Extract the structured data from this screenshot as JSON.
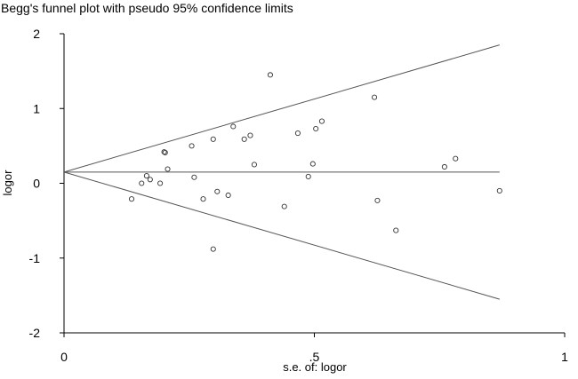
{
  "chart_data": {
    "type": "scatter",
    "title": "Begg's funnel plot with pseudo 95% confidence limits",
    "xlabel": "s.e. of: logor",
    "ylabel": "logor",
    "xlim": [
      0,
      1
    ],
    "ylim": [
      -2,
      2
    ],
    "x_ticks": [
      {
        "value": 0,
        "label": "0"
      },
      {
        "value": 0.5,
        "label": ".5"
      },
      {
        "value": 1,
        "label": "1"
      }
    ],
    "y_ticks": [
      {
        "value": 2,
        "label": "2"
      },
      {
        "value": 1,
        "label": "1"
      },
      {
        "value": 0,
        "label": "0"
      },
      {
        "value": -1,
        "label": "-1"
      },
      {
        "value": -2,
        "label": "-2"
      }
    ],
    "pooled_estimate": 0.15,
    "reference_lines": [
      {
        "name": "pooled-line",
        "x": [
          0,
          0.87
        ],
        "y": [
          0.15,
          0.15
        ]
      },
      {
        "name": "upper-limit-line",
        "x": [
          0,
          0.87
        ],
        "y": [
          0.15,
          1.85
        ]
      },
      {
        "name": "lower-limit-line",
        "x": [
          0,
          0.87
        ],
        "y": [
          0.15,
          -1.55
        ]
      }
    ],
    "points": [
      {
        "x": 0.135,
        "y": -0.21
      },
      {
        "x": 0.155,
        "y": 0.0
      },
      {
        "x": 0.165,
        "y": 0.1
      },
      {
        "x": 0.172,
        "y": 0.05
      },
      {
        "x": 0.192,
        "y": 0.0
      },
      {
        "x": 0.2,
        "y": 0.42
      },
      {
        "x": 0.202,
        "y": 0.41
      },
      {
        "x": 0.207,
        "y": 0.19
      },
      {
        "x": 0.255,
        "y": 0.5
      },
      {
        "x": 0.26,
        "y": 0.08
      },
      {
        "x": 0.278,
        "y": -0.21
      },
      {
        "x": 0.298,
        "y": 0.59
      },
      {
        "x": 0.298,
        "y": -0.88
      },
      {
        "x": 0.306,
        "y": -0.11
      },
      {
        "x": 0.328,
        "y": -0.16
      },
      {
        "x": 0.338,
        "y": 0.76
      },
      {
        "x": 0.36,
        "y": 0.59
      },
      {
        "x": 0.372,
        "y": 0.64
      },
      {
        "x": 0.38,
        "y": 0.25
      },
      {
        "x": 0.412,
        "y": 1.45
      },
      {
        "x": 0.44,
        "y": -0.31
      },
      {
        "x": 0.467,
        "y": 0.67
      },
      {
        "x": 0.488,
        "y": 0.09
      },
      {
        "x": 0.497,
        "y": 0.26
      },
      {
        "x": 0.503,
        "y": 0.73
      },
      {
        "x": 0.515,
        "y": 0.83
      },
      {
        "x": 0.62,
        "y": 1.15
      },
      {
        "x": 0.626,
        "y": -0.23
      },
      {
        "x": 0.663,
        "y": -0.63
      },
      {
        "x": 0.76,
        "y": 0.22
      },
      {
        "x": 0.782,
        "y": 0.33
      },
      {
        "x": 0.87,
        "y": -0.1
      }
    ]
  }
}
